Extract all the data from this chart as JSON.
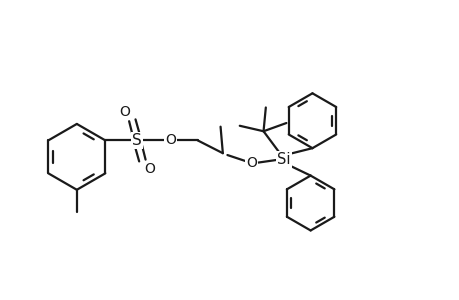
{
  "background_color": "#ffffff",
  "line_color": "#1a1a1a",
  "line_width": 1.6,
  "font_size": 10.5,
  "fig_width": 4.6,
  "fig_height": 3.0,
  "dpi": 100,
  "xlim": [
    0,
    10
  ],
  "ylim": [
    0,
    6.5
  ]
}
